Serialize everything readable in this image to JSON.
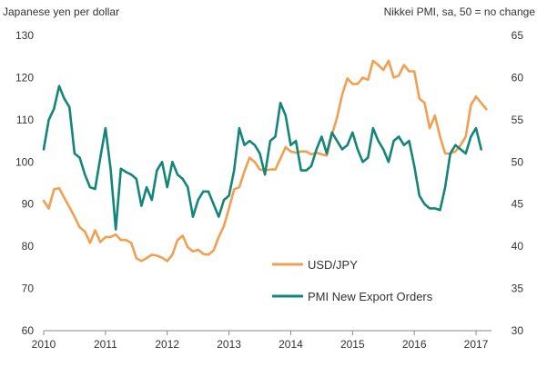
{
  "chart_data": {
    "type": "line",
    "left_axis_label": "Japanese yen per dollar",
    "right_axis_label": "Nikkei PMI, sa, 50 = no change",
    "x_range": [
      2010.0,
      2017.25
    ],
    "x_ticks": [
      "2010",
      "2011",
      "2012",
      "2013",
      "2014",
      "2015",
      "2016",
      "2017"
    ],
    "y_left_range": [
      60,
      130
    ],
    "y_left_ticks": [
      "130",
      "120",
      "110",
      "100",
      "90",
      "80",
      "70",
      "60"
    ],
    "y_right_range": [
      30,
      65
    ],
    "y_right_ticks": [
      "65",
      "60",
      "55",
      "50",
      "45",
      "40",
      "35",
      "30"
    ],
    "grid": false,
    "legend_position": "center-right",
    "colors": {
      "usdjpy": "#f0a050",
      "pmi": "#13857a"
    },
    "series": [
      {
        "name": "USD/JPY",
        "axis": "left",
        "color": "#f0a050",
        "x": [
          2010.0,
          2010.083,
          2010.167,
          2010.25,
          2010.333,
          2010.417,
          2010.5,
          2010.583,
          2010.667,
          2010.75,
          2010.833,
          2010.917,
          2011.0,
          2011.083,
          2011.167,
          2011.25,
          2011.333,
          2011.417,
          2011.5,
          2011.583,
          2011.667,
          2011.75,
          2011.833,
          2011.917,
          2012.0,
          2012.083,
          2012.167,
          2012.25,
          2012.333,
          2012.417,
          2012.5,
          2012.583,
          2012.667,
          2012.75,
          2012.833,
          2012.917,
          2013.0,
          2013.083,
          2013.167,
          2013.25,
          2013.333,
          2013.417,
          2013.5,
          2013.583,
          2013.667,
          2013.75,
          2013.833,
          2013.917,
          2014.0,
          2014.083,
          2014.167,
          2014.25,
          2014.333,
          2014.417,
          2014.5,
          2014.583,
          2014.667,
          2014.75,
          2014.833,
          2014.917,
          2015.0,
          2015.083,
          2015.167,
          2015.25,
          2015.333,
          2015.417,
          2015.5,
          2015.583,
          2015.667,
          2015.75,
          2015.833,
          2015.917,
          2016.0,
          2016.083,
          2016.167,
          2016.25,
          2016.333,
          2016.417,
          2016.5,
          2016.583,
          2016.667,
          2016.75,
          2016.833,
          2016.917,
          2017.0,
          2017.083,
          2017.167
        ],
        "values": [
          90.8,
          89.0,
          93.5,
          93.8,
          91.5,
          89.3,
          87.0,
          84.5,
          83.5,
          80.8,
          83.8,
          81.0,
          82.2,
          82.2,
          82.8,
          81.5,
          81.5,
          80.8,
          77.2,
          76.5,
          77.2,
          78.0,
          77.8,
          77.3,
          76.5,
          78.0,
          81.5,
          82.5,
          79.8,
          78.8,
          79.2,
          78.2,
          78.0,
          79.0,
          82.2,
          84.8,
          89.0,
          93.5,
          94.0,
          97.8,
          101.0,
          100.0,
          98.2,
          98.0,
          98.2,
          98.2,
          100.8,
          103.5,
          102.5,
          102.2,
          102.5,
          102.5,
          101.8,
          102.2,
          101.8,
          101.5,
          106.5,
          110.5,
          116.0,
          119.8,
          118.5,
          118.5,
          120.0,
          119.5,
          124.0,
          123.0,
          121.8,
          124.0,
          120.0,
          120.5,
          123.0,
          121.5,
          121.5,
          115.0,
          114.0,
          108.0,
          111.0,
          106.0,
          102.0,
          102.0,
          102.5,
          104.0,
          106.0,
          113.5,
          115.5,
          114.0,
          112.5
        ]
      },
      {
        "name": "PMI New Export Orders",
        "axis": "right",
        "color": "#13857a",
        "x": [
          2010.0,
          2010.083,
          2010.167,
          2010.25,
          2010.333,
          2010.417,
          2010.5,
          2010.583,
          2010.667,
          2010.75,
          2010.833,
          2010.917,
          2011.0,
          2011.083,
          2011.167,
          2011.25,
          2011.333,
          2011.417,
          2011.5,
          2011.583,
          2011.667,
          2011.75,
          2011.833,
          2011.917,
          2012.0,
          2012.083,
          2012.167,
          2012.25,
          2012.333,
          2012.417,
          2012.5,
          2012.583,
          2012.667,
          2012.75,
          2012.833,
          2012.917,
          2013.0,
          2013.083,
          2013.167,
          2013.25,
          2013.333,
          2013.417,
          2013.5,
          2013.583,
          2013.667,
          2013.75,
          2013.833,
          2013.917,
          2014.0,
          2014.083,
          2014.167,
          2014.25,
          2014.333,
          2014.417,
          2014.5,
          2014.583,
          2014.667,
          2014.75,
          2014.833,
          2014.917,
          2015.0,
          2015.083,
          2015.167,
          2015.25,
          2015.333,
          2015.417,
          2015.5,
          2015.583,
          2015.667,
          2015.75,
          2015.833,
          2015.917,
          2016.0,
          2016.083,
          2016.167,
          2016.25,
          2016.333,
          2016.417,
          2016.5,
          2016.583,
          2016.667,
          2016.75,
          2016.833,
          2016.917,
          2017.0,
          2017.083,
          2017.167
        ],
        "values": [
          51.5,
          55.0,
          56.3,
          59.0,
          57.5,
          56.5,
          51.0,
          50.5,
          48.5,
          47.0,
          46.8,
          50.5,
          54.0,
          49.2,
          42.0,
          49.2,
          48.8,
          48.5,
          48.0,
          44.8,
          47.0,
          45.5,
          49.0,
          50.0,
          47.0,
          50.0,
          48.5,
          48.0,
          47.0,
          43.5,
          45.5,
          46.5,
          46.5,
          45.0,
          43.5,
          45.5,
          46.0,
          49.0,
          54.0,
          52.0,
          52.5,
          52.0,
          51.0,
          48.5,
          52.5,
          53.0,
          57.0,
          55.5,
          52.0,
          52.5,
          49.0,
          49.0,
          49.5,
          51.5,
          53.0,
          51.0,
          53.5,
          52.5,
          51.5,
          52.0,
          53.5,
          51.5,
          50.0,
          50.5,
          54.0,
          52.5,
          51.5,
          50.0,
          52.5,
          53.0,
          52.0,
          52.5,
          49.5,
          46.0,
          45.0,
          44.5,
          44.5,
          44.3,
          47.0,
          51.0,
          52.0,
          51.5,
          51.0,
          53.0,
          54.0,
          51.5,
          null
        ]
      }
    ]
  }
}
